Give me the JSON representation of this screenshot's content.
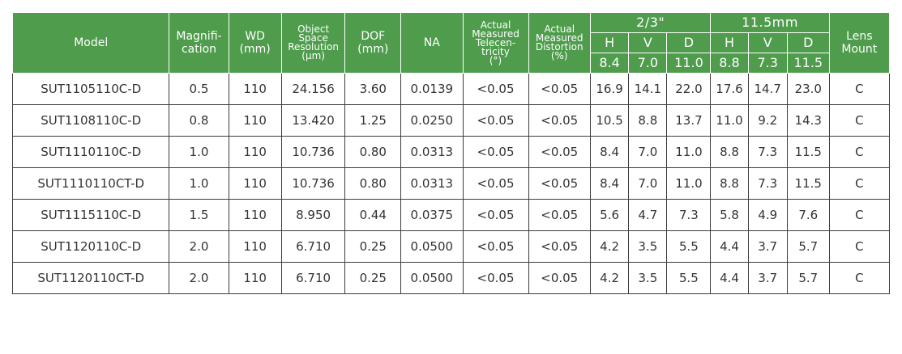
{
  "table": {
    "columns": {
      "model": "Model",
      "magnification": "Magnifi-\ncation",
      "wd": "WD\n(mm)",
      "resolution": "Object\nSpace\nResolution\n(μm)",
      "dof": "DOF\n(mm)",
      "na": "NA",
      "telecentricity": "Actual\nMeasured\nTelecen-\ntricity\n(°)",
      "distortion": "Actual\nMeasured\nDistortion\n(%)",
      "sensor_a": "2/3\"",
      "sensor_b": "11.5mm",
      "mount": "Lens\nMount"
    },
    "sensor_a_sub": [
      "H",
      "V",
      "D"
    ],
    "sensor_a_values": [
      "8.4",
      "7.0",
      "11.0"
    ],
    "sensor_b_sub": [
      "H",
      "V",
      "D"
    ],
    "sensor_b_values": [
      "8.8",
      "7.3",
      "11.5"
    ],
    "rows": [
      [
        "SUT1105110C-D",
        "0.5",
        "110",
        "24.156",
        "3.60",
        "0.0139",
        "<0.05",
        "<0.05",
        "16.9",
        "14.1",
        "22.0",
        "17.6",
        "14.7",
        "23.0",
        "C"
      ],
      [
        "SUT1108110C-D",
        "0.8",
        "110",
        "13.420",
        "1.25",
        "0.0250",
        "<0.05",
        "<0.05",
        "10.5",
        "8.8",
        "13.7",
        "11.0",
        "9.2",
        "14.3",
        "C"
      ],
      [
        "SUT1110110C-D",
        "1.0",
        "110",
        "10.736",
        "0.80",
        "0.0313",
        "<0.05",
        "<0.05",
        "8.4",
        "7.0",
        "11.0",
        "8.8",
        "7.3",
        "11.5",
        "C"
      ],
      [
        "SUT1110110CT-D",
        "1.0",
        "110",
        "10.736",
        "0.80",
        "0.0313",
        "<0.05",
        "<0.05",
        "8.4",
        "7.0",
        "11.0",
        "8.8",
        "7.3",
        "11.5",
        "C"
      ],
      [
        "SUT1115110C-D",
        "1.5",
        "110",
        "8.950",
        "0.44",
        "0.0375",
        "<0.05",
        "<0.05",
        "5.6",
        "4.7",
        "7.3",
        "5.8",
        "4.9",
        "7.6",
        "C"
      ],
      [
        "SUT1120110C-D",
        "2.0",
        "110",
        "6.710",
        "0.25",
        "0.0500",
        "<0.05",
        "<0.05",
        "4.2",
        "3.5",
        "5.5",
        "4.4",
        "3.7",
        "5.7",
        "C"
      ],
      [
        "SUT1120110CT-D",
        "2.0",
        "110",
        "6.710",
        "0.25",
        "0.0500",
        "<0.05",
        "<0.05",
        "4.2",
        "3.5",
        "5.5",
        "4.4",
        "3.7",
        "5.7",
        "C"
      ]
    ]
  },
  "colors": {
    "header_bg": "#4e9c4c",
    "header_text": "#ffffff",
    "body_text": "#333333",
    "border": "#3c3c3c"
  }
}
